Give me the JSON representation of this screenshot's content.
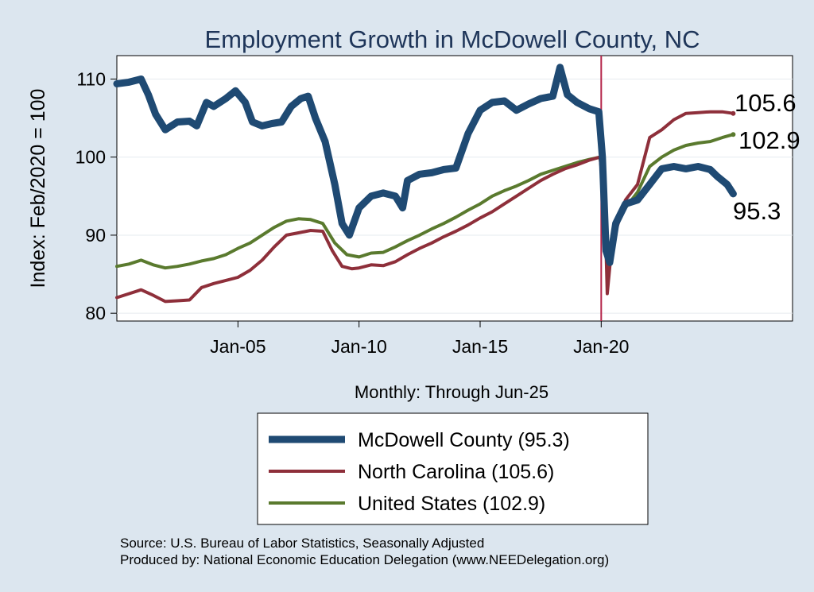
{
  "chart_data": {
    "type": "line",
    "title": "Employment Growth in McDowell  County, NC",
    "ylabel": "Index: Feb/2020 = 100",
    "xlabel": "Monthly: Through Jun-25",
    "ylim": [
      79,
      113
    ],
    "xlim": [
      2000.0,
      2027.9
    ],
    "yticks": [
      80,
      90,
      100,
      110
    ],
    "xticks": [
      {
        "value": 2005.0,
        "label": "Jan-05"
      },
      {
        "value": 2010.0,
        "label": "Jan-10"
      },
      {
        "value": 2015.0,
        "label": "Jan-15"
      },
      {
        "value": 2020.0,
        "label": "Jan-20"
      }
    ],
    "reference_line": {
      "x": 2020.0,
      "color": "#b5254a"
    },
    "grid": true,
    "series": [
      {
        "name": "McDowell  County",
        "legend": "McDowell  County (95.3)",
        "end_label": "95.3",
        "color": "#1f4a73",
        "points": [
          [
            2000.0,
            109.4
          ],
          [
            2000.5,
            109.6
          ],
          [
            2001.0,
            110.0
          ],
          [
            2001.3,
            108.0
          ],
          [
            2001.6,
            105.5
          ],
          [
            2002.0,
            103.5
          ],
          [
            2002.5,
            104.5
          ],
          [
            2003.0,
            104.6
          ],
          [
            2003.3,
            104.0
          ],
          [
            2003.7,
            107.0
          ],
          [
            2004.0,
            106.5
          ],
          [
            2004.5,
            107.5
          ],
          [
            2004.9,
            108.5
          ],
          [
            2005.3,
            107.0
          ],
          [
            2005.6,
            104.5
          ],
          [
            2006.0,
            104.0
          ],
          [
            2006.4,
            104.3
          ],
          [
            2006.8,
            104.5
          ],
          [
            2007.2,
            106.5
          ],
          [
            2007.6,
            107.5
          ],
          [
            2007.9,
            107.8
          ],
          [
            2008.2,
            105.0
          ],
          [
            2008.6,
            102.0
          ],
          [
            2009.0,
            96.5
          ],
          [
            2009.3,
            91.5
          ],
          [
            2009.6,
            90.0
          ],
          [
            2010.0,
            93.5
          ],
          [
            2010.5,
            95.0
          ],
          [
            2011.0,
            95.4
          ],
          [
            2011.5,
            95.0
          ],
          [
            2011.8,
            93.5
          ],
          [
            2012.0,
            97.0
          ],
          [
            2012.5,
            97.8
          ],
          [
            2013.0,
            98.0
          ],
          [
            2013.5,
            98.4
          ],
          [
            2014.0,
            98.6
          ],
          [
            2014.5,
            103.0
          ],
          [
            2015.0,
            106.0
          ],
          [
            2015.5,
            107.0
          ],
          [
            2016.0,
            107.2
          ],
          [
            2016.5,
            106.0
          ],
          [
            2017.0,
            106.8
          ],
          [
            2017.5,
            107.5
          ],
          [
            2018.0,
            107.8
          ],
          [
            2018.3,
            111.5
          ],
          [
            2018.6,
            108.0
          ],
          [
            2019.0,
            107.0
          ],
          [
            2019.5,
            106.2
          ],
          [
            2019.9,
            105.8
          ],
          [
            2020.05,
            100.0
          ],
          [
            2020.2,
            88.0
          ],
          [
            2020.35,
            86.5
          ],
          [
            2020.6,
            91.5
          ],
          [
            2021.0,
            94.0
          ],
          [
            2021.5,
            94.5
          ],
          [
            2022.0,
            96.5
          ],
          [
            2022.5,
            98.5
          ],
          [
            2023.0,
            98.8
          ],
          [
            2023.5,
            98.5
          ],
          [
            2024.0,
            98.8
          ],
          [
            2024.5,
            98.4
          ],
          [
            2024.8,
            97.5
          ],
          [
            2025.2,
            96.5
          ],
          [
            2025.45,
            95.3
          ]
        ]
      },
      {
        "name": "North Carolina",
        "legend": "North Carolina (105.6)",
        "end_label": "105.6",
        "color": "#8e2f3a",
        "points": [
          [
            2000.0,
            82.0
          ],
          [
            2000.5,
            82.5
          ],
          [
            2001.0,
            83.0
          ],
          [
            2001.5,
            82.3
          ],
          [
            2002.0,
            81.5
          ],
          [
            2002.5,
            81.6
          ],
          [
            2003.0,
            81.7
          ],
          [
            2003.5,
            83.3
          ],
          [
            2004.0,
            83.8
          ],
          [
            2004.5,
            84.2
          ],
          [
            2005.0,
            84.6
          ],
          [
            2005.5,
            85.5
          ],
          [
            2006.0,
            86.8
          ],
          [
            2006.5,
            88.5
          ],
          [
            2007.0,
            90.0
          ],
          [
            2007.5,
            90.3
          ],
          [
            2008.0,
            90.6
          ],
          [
            2008.5,
            90.5
          ],
          [
            2008.9,
            88.0
          ],
          [
            2009.3,
            86.0
          ],
          [
            2009.7,
            85.7
          ],
          [
            2010.0,
            85.8
          ],
          [
            2010.5,
            86.2
          ],
          [
            2011.0,
            86.1
          ],
          [
            2011.5,
            86.6
          ],
          [
            2012.0,
            87.5
          ],
          [
            2012.5,
            88.3
          ],
          [
            2013.0,
            89.0
          ],
          [
            2013.5,
            89.8
          ],
          [
            2014.0,
            90.5
          ],
          [
            2014.5,
            91.3
          ],
          [
            2015.0,
            92.2
          ],
          [
            2015.5,
            93.0
          ],
          [
            2016.0,
            94.0
          ],
          [
            2016.5,
            95.0
          ],
          [
            2017.0,
            96.0
          ],
          [
            2017.5,
            97.0
          ],
          [
            2018.0,
            97.8
          ],
          [
            2018.5,
            98.5
          ],
          [
            2019.0,
            99.0
          ],
          [
            2019.5,
            99.6
          ],
          [
            2019.95,
            100.0
          ],
          [
            2020.15,
            94.0
          ],
          [
            2020.25,
            82.5
          ],
          [
            2020.45,
            89.0
          ],
          [
            2021.0,
            94.5
          ],
          [
            2021.5,
            96.5
          ],
          [
            2022.0,
            102.5
          ],
          [
            2022.5,
            103.5
          ],
          [
            2023.0,
            104.8
          ],
          [
            2023.5,
            105.6
          ],
          [
            2024.0,
            105.7
          ],
          [
            2024.5,
            105.8
          ],
          [
            2025.0,
            105.8
          ],
          [
            2025.45,
            105.6
          ]
        ]
      },
      {
        "name": "United States",
        "legend": "United States (102.9)",
        "end_label": "102.9",
        "color": "#5a7a2e",
        "points": [
          [
            2000.0,
            86.0
          ],
          [
            2000.5,
            86.3
          ],
          [
            2001.0,
            86.8
          ],
          [
            2001.5,
            86.2
          ],
          [
            2002.0,
            85.8
          ],
          [
            2002.5,
            86.0
          ],
          [
            2003.0,
            86.3
          ],
          [
            2003.5,
            86.7
          ],
          [
            2004.0,
            87.0
          ],
          [
            2004.5,
            87.5
          ],
          [
            2005.0,
            88.3
          ],
          [
            2005.5,
            89.0
          ],
          [
            2006.0,
            90.0
          ],
          [
            2006.5,
            91.0
          ],
          [
            2007.0,
            91.8
          ],
          [
            2007.5,
            92.1
          ],
          [
            2008.0,
            92.0
          ],
          [
            2008.5,
            91.5
          ],
          [
            2009.0,
            89.0
          ],
          [
            2009.5,
            87.5
          ],
          [
            2010.0,
            87.2
          ],
          [
            2010.5,
            87.7
          ],
          [
            2011.0,
            87.8
          ],
          [
            2011.5,
            88.5
          ],
          [
            2012.0,
            89.3
          ],
          [
            2012.5,
            90.0
          ],
          [
            2013.0,
            90.8
          ],
          [
            2013.5,
            91.5
          ],
          [
            2014.0,
            92.3
          ],
          [
            2014.5,
            93.2
          ],
          [
            2015.0,
            94.0
          ],
          [
            2015.5,
            95.0
          ],
          [
            2016.0,
            95.7
          ],
          [
            2016.5,
            96.3
          ],
          [
            2017.0,
            97.0
          ],
          [
            2017.5,
            97.8
          ],
          [
            2018.0,
            98.3
          ],
          [
            2018.5,
            98.8
          ],
          [
            2019.0,
            99.3
          ],
          [
            2019.5,
            99.7
          ],
          [
            2019.95,
            100.0
          ],
          [
            2020.15,
            95.0
          ],
          [
            2020.25,
            85.0
          ],
          [
            2020.45,
            90.0
          ],
          [
            2021.0,
            93.5
          ],
          [
            2021.5,
            95.5
          ],
          [
            2022.0,
            98.8
          ],
          [
            2022.5,
            100.0
          ],
          [
            2023.0,
            100.9
          ],
          [
            2023.5,
            101.5
          ],
          [
            2024.0,
            101.8
          ],
          [
            2024.5,
            102.0
          ],
          [
            2025.0,
            102.5
          ],
          [
            2025.45,
            102.9
          ]
        ]
      }
    ]
  },
  "footer": {
    "source": "Source: U.S. Bureau of Labor Statistics, Seasonally Adjusted",
    "produced_by": "Produced by: National Economic Education Delegation (www.NEEDelegation.org)"
  }
}
